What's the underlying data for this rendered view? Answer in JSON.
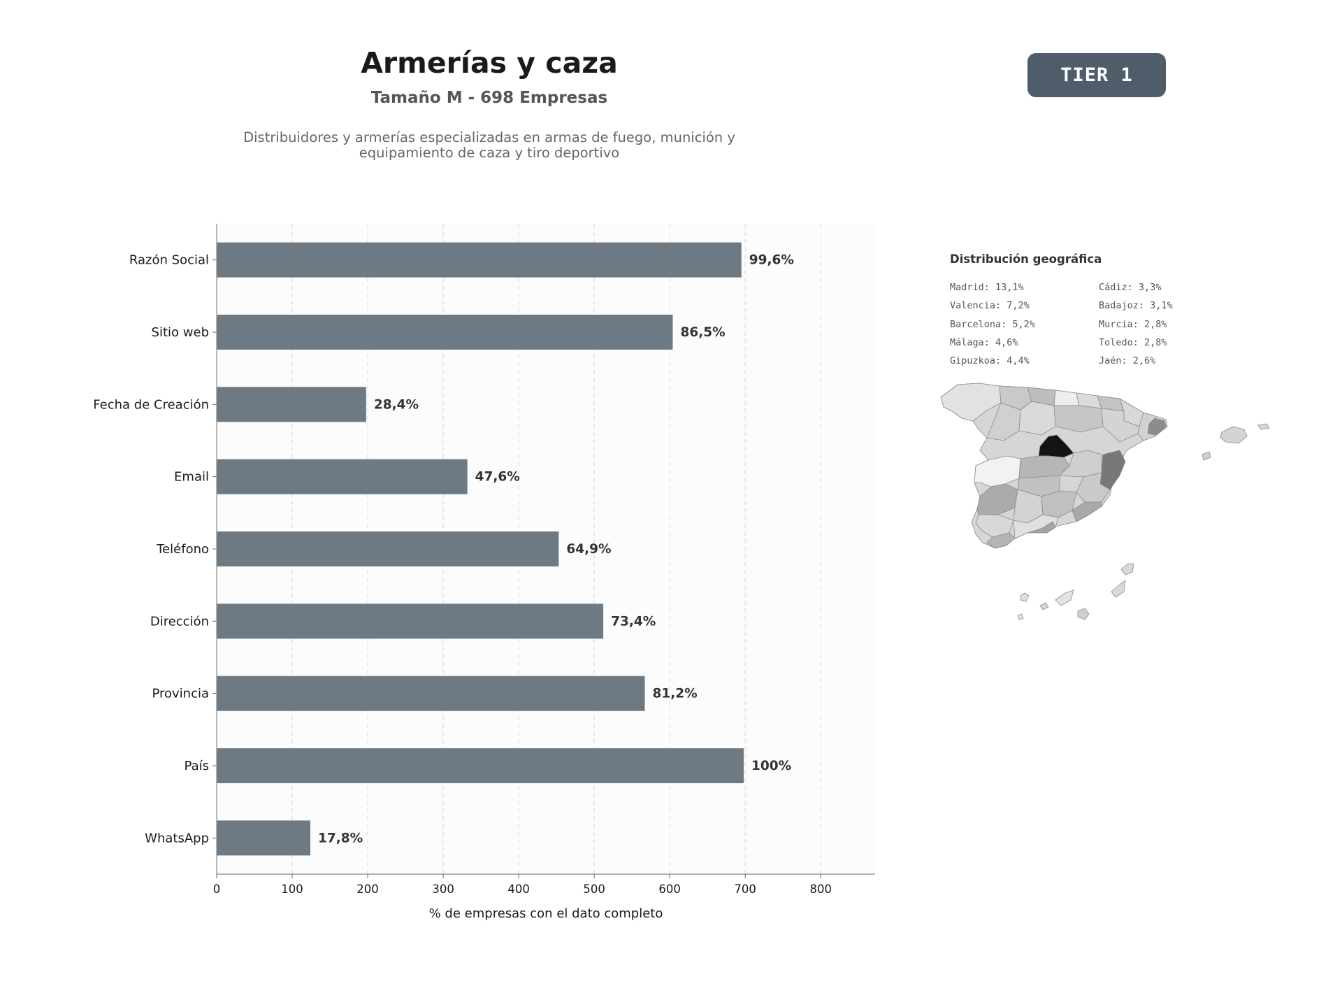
{
  "header": {
    "title": "Armerías y caza",
    "subtitle": "Tamaño M - 698 Empresas",
    "description_line1": "Distribuidores y armerías especializadas en armas de fuego, munición y",
    "description_line2": "equipamiento de caza y tiro deportivo",
    "tier_badge": "TIER 1"
  },
  "colors": {
    "bar": "#6e7a83",
    "tier_badge": "#4f5d6b",
    "plot_background": "#fcfcfc"
  },
  "chart_data": {
    "type": "bar",
    "orientation": "horizontal",
    "categories": [
      "Razón Social",
      "Sitio web",
      "Fecha de Creación",
      "Email",
      "Teléfono",
      "Dirección",
      "Provincia",
      "País",
      "WhatsApp"
    ],
    "values": [
      695,
      604,
      198,
      332,
      453,
      512,
      567,
      698,
      124
    ],
    "data_labels": [
      "99,6%",
      "86,5%",
      "28,4%",
      "47,6%",
      "64,9%",
      "73,4%",
      "81,2%",
      "100%",
      "17,8%"
    ],
    "xlabel": "% de empresas con el dato completo",
    "ylabel": "",
    "xlim": [
      0,
      872
    ],
    "xticks": [
      0,
      100,
      200,
      300,
      400,
      500,
      600,
      700,
      800
    ],
    "grid": "vertical dashed"
  },
  "geo": {
    "title": "Distribución geográfica",
    "left_column": [
      "Madrid: 13,1%",
      "Valencia: 7,2%",
      "Barcelona: 5,2%",
      "Málaga: 4,6%",
      "Gipuzkoa: 4,4%"
    ],
    "right_column": [
      "Cádiz: 3,3%",
      "Badajoz: 3,1%",
      "Murcia: 2,8%",
      "Toledo: 2,8%",
      "Jaén: 2,6%"
    ]
  }
}
